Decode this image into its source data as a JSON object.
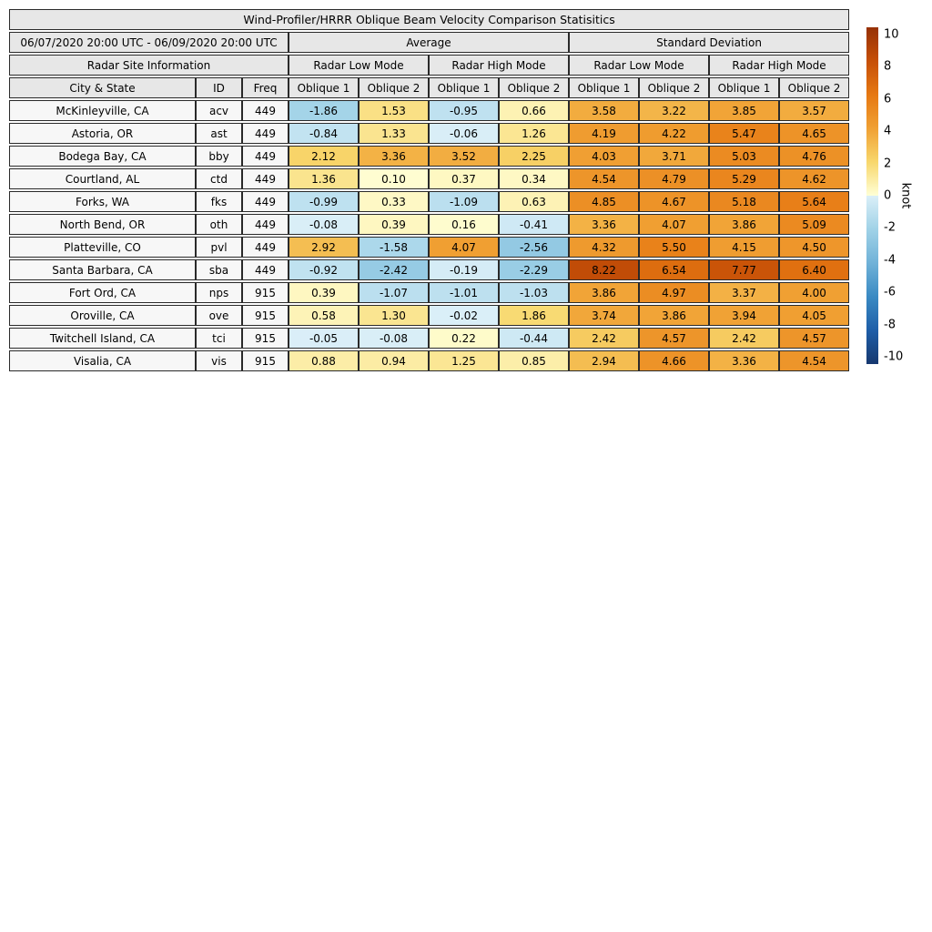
{
  "title": "Wind-Profiler/HRRR Oblique Beam Velocity Comparison Statisitics",
  "header": {
    "date_range": "06/07/2020 20:00 UTC - 06/09/2020 20:00 UTC",
    "group_average": "Average",
    "group_std": "Standard Deviation",
    "site_info": "Radar Site Information",
    "low_mode": "Radar Low Mode",
    "high_mode": "Radar High Mode",
    "city_state": "City & State",
    "id": "ID",
    "freq": "Freq",
    "oblique1": "Oblique 1",
    "oblique2": "Oblique 2"
  },
  "chart_data": {
    "type": "table",
    "title": "Wind-Profiler/HRRR Oblique Beam Velocity Comparison Statisitics",
    "period": "06/07/2020 20:00 UTC - 06/09/2020 20:00 UTC",
    "column_groups": [
      "Radar Site Information",
      "Average / Radar Low Mode",
      "Average / Radar High Mode",
      "Standard Deviation / Radar Low Mode",
      "Standard Deviation / Radar High Mode"
    ],
    "value_columns": [
      "Avg Low Oblique 1",
      "Avg Low Oblique 2",
      "Avg High Oblique 1",
      "Avg High Oblique 2",
      "Std Low Oblique 1",
      "Std Low Oblique 2",
      "Std High Oblique 1",
      "Std High Oblique 2"
    ],
    "rows": [
      {
        "city": "McKinleyville, CA",
        "id": "acv",
        "freq": "449",
        "values": [
          -1.86,
          1.53,
          -0.95,
          0.66,
          3.58,
          3.22,
          3.85,
          3.57
        ]
      },
      {
        "city": "Astoria, OR",
        "id": "ast",
        "freq": "449",
        "values": [
          -0.84,
          1.33,
          -0.06,
          1.26,
          4.19,
          4.22,
          5.47,
          4.65
        ]
      },
      {
        "city": "Bodega Bay, CA",
        "id": "bby",
        "freq": "449",
        "values": [
          2.12,
          3.36,
          3.52,
          2.25,
          4.03,
          3.71,
          5.03,
          4.76
        ]
      },
      {
        "city": "Courtland, AL",
        "id": "ctd",
        "freq": "449",
        "values": [
          1.36,
          0.1,
          0.37,
          0.34,
          4.54,
          4.79,
          5.29,
          4.62
        ]
      },
      {
        "city": "Forks, WA",
        "id": "fks",
        "freq": "449",
        "values": [
          -0.99,
          0.33,
          -1.09,
          0.63,
          4.85,
          4.67,
          5.18,
          5.64
        ]
      },
      {
        "city": "North Bend, OR",
        "id": "oth",
        "freq": "449",
        "values": [
          -0.08,
          0.39,
          0.16,
          -0.41,
          3.36,
          4.07,
          3.86,
          5.09
        ]
      },
      {
        "city": "Platteville, CO",
        "id": "pvl",
        "freq": "449",
        "values": [
          2.92,
          -1.58,
          4.07,
          -2.56,
          4.32,
          5.5,
          4.15,
          4.5
        ]
      },
      {
        "city": "Santa Barbara, CA",
        "id": "sba",
        "freq": "449",
        "values": [
          -0.92,
          -2.42,
          -0.19,
          -2.29,
          8.22,
          6.54,
          7.77,
          6.4
        ]
      },
      {
        "city": "Fort Ord, CA",
        "id": "nps",
        "freq": "915",
        "values": [
          0.39,
          -1.07,
          -1.01,
          -1.03,
          3.86,
          4.97,
          3.37,
          4.0
        ]
      },
      {
        "city": "Oroville, CA",
        "id": "ove",
        "freq": "915",
        "values": [
          0.58,
          1.3,
          -0.02,
          1.86,
          3.74,
          3.86,
          3.94,
          4.05
        ]
      },
      {
        "city": "Twitchell Island, CA",
        "id": "tci",
        "freq": "915",
        "values": [
          -0.05,
          -0.08,
          0.22,
          -0.44,
          2.42,
          4.57,
          2.42,
          4.57
        ]
      },
      {
        "city": "Visalia, CA",
        "id": "vis",
        "freq": "915",
        "values": [
          0.88,
          0.94,
          1.25,
          0.85,
          2.94,
          4.66,
          3.36,
          4.54
        ]
      }
    ],
    "colorbar": {
      "label": "knot",
      "min": -10,
      "max": 10,
      "ticks": [
        10,
        8,
        6,
        4,
        2,
        0,
        -2,
        -4,
        -6,
        -8,
        -10
      ],
      "positive_stops": [
        [
          0,
          "#ffffd6"
        ],
        [
          2,
          "#f8d76c"
        ],
        [
          4,
          "#f0a033"
        ],
        [
          6,
          "#e67812"
        ],
        [
          8,
          "#c64f07"
        ],
        [
          10,
          "#963105"
        ]
      ],
      "negative_stops": [
        [
          0,
          "#dbeff8"
        ],
        [
          -2,
          "#a0d2e7"
        ],
        [
          -4,
          "#70b2d8"
        ],
        [
          -6,
          "#3a8ac3"
        ],
        [
          -8,
          "#1e5ea8"
        ],
        [
          -10,
          "#16386f"
        ]
      ]
    }
  }
}
